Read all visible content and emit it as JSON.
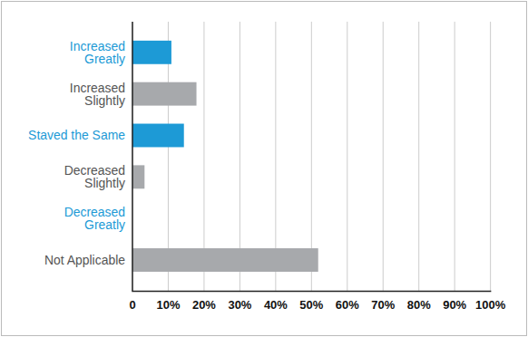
{
  "chart_data": {
    "type": "bar",
    "orientation": "horizontal",
    "categories": [
      "Increased\nGreatly",
      "Increased\nSlightly",
      "Staved the Same",
      "Decreased\nSlightly",
      "Decreased\nGreatly",
      "Not Applicable"
    ],
    "values": [
      11,
      18,
      14.5,
      3.5,
      0,
      52
    ],
    "colors": [
      "#1d9ad6",
      "#a7a9ac",
      "#1d9ad6",
      "#a7a9ac",
      "#1d9ad6",
      "#a7a9ac"
    ],
    "xlim": [
      0,
      100
    ],
    "xticks": [
      0,
      {
        "value": 10,
        "label": "10%"
      },
      {
        "value": 20,
        "label": "20%"
      },
      {
        "value": 30,
        "label": "30%"
      },
      {
        "value": 40,
        "label": "40%"
      },
      {
        "value": 50,
        "label": "50%"
      },
      {
        "value": 60,
        "label": "60%"
      },
      {
        "value": 70,
        "label": "70%"
      },
      {
        "value": 80,
        "label": "80%"
      },
      {
        "value": 90,
        "label": "90%"
      },
      {
        "value": 100,
        "label": "100%"
      }
    ],
    "grid": true
  }
}
